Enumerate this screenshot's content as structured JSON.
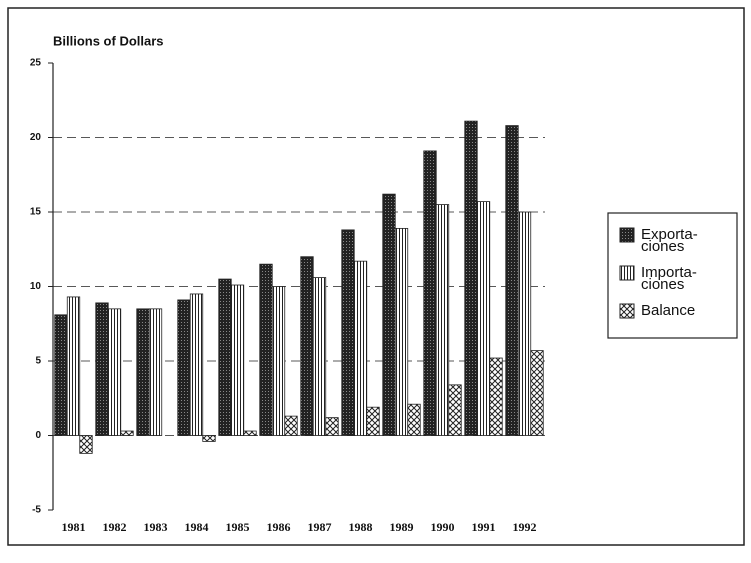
{
  "chart_data": {
    "type": "bar",
    "title": "Billions of Dollars",
    "categories": [
      "1981",
      "1982",
      "1983",
      "1984",
      "1985",
      "1986",
      "1987",
      "1988",
      "1989",
      "1990",
      "1991",
      "1992"
    ],
    "series": [
      {
        "name": "Exporta-\nciones",
        "color": "#222222",
        "pattern": "dots",
        "values": [
          8.1,
          8.9,
          8.5,
          9.1,
          10.5,
          11.5,
          12.0,
          13.8,
          16.2,
          19.1,
          21.1,
          20.8
        ]
      },
      {
        "name": "Importa-\nciones",
        "color": "#222222",
        "pattern": "vertical-lines",
        "values": [
          9.3,
          8.5,
          8.5,
          9.5,
          10.1,
          10.0,
          10.6,
          11.7,
          13.9,
          15.5,
          15.7,
          15.0
        ]
      },
      {
        "name": "Balance",
        "color": "#222222",
        "pattern": "crosshatch",
        "values": [
          -1.2,
          0.3,
          0,
          -0.4,
          0.3,
          1.3,
          1.2,
          1.9,
          2.1,
          3.4,
          5.2,
          5.7
        ]
      }
    ],
    "ylim": [
      -5,
      25
    ],
    "yticks": [
      25,
      20,
      15,
      10,
      5,
      0,
      -5
    ],
    "grid": true,
    "legend": "right"
  }
}
